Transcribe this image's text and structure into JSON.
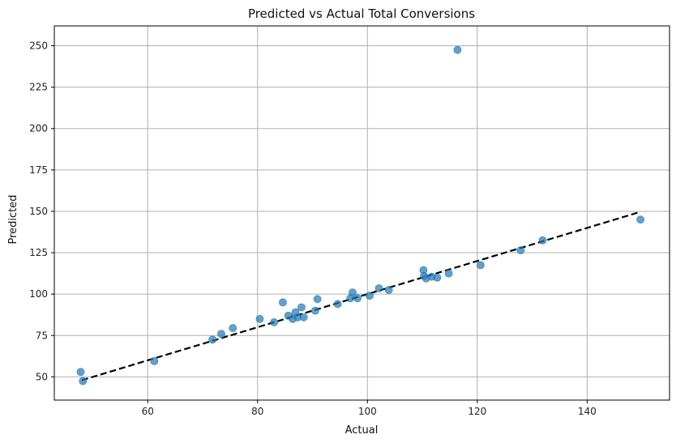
{
  "chart_data": {
    "type": "scatter",
    "title": "Predicted vs Actual Total Conversions",
    "xlabel": "Actual",
    "ylabel": "Predicted",
    "xlim": [
      43,
      155
    ],
    "ylim": [
      36,
      262
    ],
    "xticks": [
      60,
      80,
      100,
      120,
      140
    ],
    "yticks": [
      50,
      75,
      100,
      125,
      150,
      175,
      200,
      225,
      250
    ],
    "grid": true,
    "colors": {
      "points": "#1f77b4",
      "reference_line": "#000000",
      "grid": "#b0b0b0"
    },
    "reference_line": {
      "x": [
        48,
        149.5
      ],
      "y": [
        48,
        149.5
      ],
      "style": "dashed"
    },
    "points": [
      {
        "x": 47.8,
        "y": 53.0
      },
      {
        "x": 48.2,
        "y": 47.5
      },
      {
        "x": 61.2,
        "y": 59.5
      },
      {
        "x": 71.8,
        "y": 72.5
      },
      {
        "x": 73.4,
        "y": 76.0
      },
      {
        "x": 75.5,
        "y": 79.5
      },
      {
        "x": 80.4,
        "y": 85.0
      },
      {
        "x": 83.0,
        "y": 83.0
      },
      {
        "x": 84.6,
        "y": 95.0
      },
      {
        "x": 85.6,
        "y": 87.0
      },
      {
        "x": 86.4,
        "y": 85.0
      },
      {
        "x": 86.9,
        "y": 89.0
      },
      {
        "x": 87.3,
        "y": 86.0
      },
      {
        "x": 88.0,
        "y": 92.0
      },
      {
        "x": 88.4,
        "y": 86.0
      },
      {
        "x": 90.5,
        "y": 90.0
      },
      {
        "x": 90.9,
        "y": 97.0
      },
      {
        "x": 94.6,
        "y": 94.0
      },
      {
        "x": 96.9,
        "y": 97.5
      },
      {
        "x": 97.3,
        "y": 101.0
      },
      {
        "x": 98.2,
        "y": 97.5
      },
      {
        "x": 100.4,
        "y": 99.0
      },
      {
        "x": 102.1,
        "y": 103.5
      },
      {
        "x": 103.9,
        "y": 102.5
      },
      {
        "x": 110.2,
        "y": 114.5
      },
      {
        "x": 110.3,
        "y": 111.0
      },
      {
        "x": 110.7,
        "y": 109.5
      },
      {
        "x": 111.7,
        "y": 110.5
      },
      {
        "x": 112.7,
        "y": 110.0
      },
      {
        "x": 114.8,
        "y": 112.5
      },
      {
        "x": 116.4,
        "y": 247.5
      },
      {
        "x": 120.6,
        "y": 117.5
      },
      {
        "x": 127.9,
        "y": 126.5
      },
      {
        "x": 131.9,
        "y": 132.5
      },
      {
        "x": 149.7,
        "y": 145.0
      }
    ]
  }
}
